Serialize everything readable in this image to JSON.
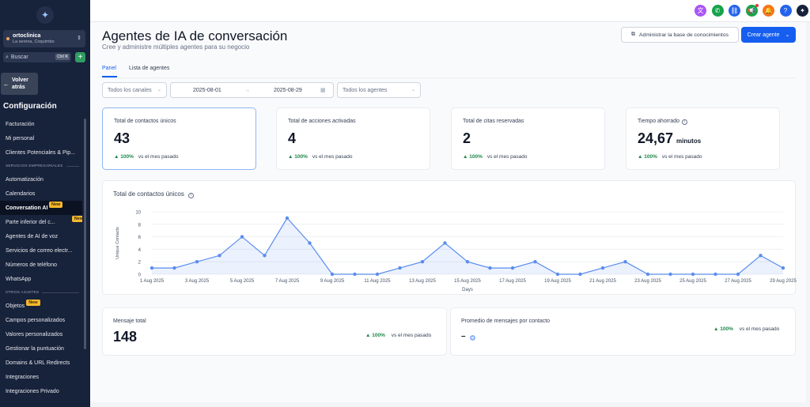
{
  "sidebar": {
    "account_name": "ortoclinica",
    "account_location": "La serena, Coquimbo",
    "search_placeholder": "Buscar",
    "search_shortcut": "Ctrl K",
    "back_label_1": "Volver",
    "back_label_2": "atrás",
    "config_title": "Configuración",
    "new_badge": "New",
    "items": [
      {
        "type": "item",
        "label": "Facturación"
      },
      {
        "type": "item",
        "label": "Mi personal"
      },
      {
        "type": "item",
        "label": "Clientes Potenciales & Pip..."
      },
      {
        "type": "section",
        "label": "SERVICIOS EMPRESARIALES"
      },
      {
        "type": "item",
        "label": "Automatización"
      },
      {
        "type": "item",
        "label": "Calendarios"
      },
      {
        "type": "item",
        "label": "Conversation AI",
        "active": true,
        "badge": true
      },
      {
        "type": "item",
        "label": "Parte inferior del c...",
        "badge": true
      },
      {
        "type": "item",
        "label": "Agentes de AI de voz"
      },
      {
        "type": "item",
        "label": "Servicios de correo electr..."
      },
      {
        "type": "item",
        "label": "Números de teléfono"
      },
      {
        "type": "item",
        "label": "WhatsApp"
      },
      {
        "type": "section",
        "label": "OTROS AJUSTES"
      },
      {
        "type": "item",
        "label": "Objetos",
        "badge": true
      },
      {
        "type": "item",
        "label": "Campos personalizados"
      },
      {
        "type": "item",
        "label": "Valores personalizados"
      },
      {
        "type": "item",
        "label": "Gestionar la puntuación"
      },
      {
        "type": "item",
        "label": "Domains & URL Redirects"
      },
      {
        "type": "item",
        "label": "Integraciones"
      },
      {
        "type": "item",
        "label": "Integraciones Privado"
      }
    ]
  },
  "topbar": {
    "icons": [
      {
        "name": "translate-icon",
        "glyph": "文",
        "color": "#a855f7"
      },
      {
        "name": "phone-icon",
        "glyph": "✆",
        "color": "#16a34a"
      },
      {
        "name": "link-icon",
        "glyph": "⛓",
        "color": "#2563eb"
      },
      {
        "name": "megaphone-icon",
        "glyph": "📢",
        "color": "#16a34a",
        "dot": true
      },
      {
        "name": "bell-icon",
        "glyph": "🔔",
        "color": "#f97316"
      },
      {
        "name": "help-icon",
        "glyph": "?",
        "color": "#2563eb"
      },
      {
        "name": "profile-logo-icon",
        "glyph": "✦",
        "color": "#17223b"
      }
    ]
  },
  "header": {
    "title": "Agentes de IA de conversación",
    "subtitle": "Cree y administre múltiples agentes para su negocio",
    "kb_button": "Administrar la base de conocimientos",
    "create_button": "Crear agente"
  },
  "tabs": [
    "Panel",
    "Lista de agentes"
  ],
  "filters": {
    "channels": "Todos los canales",
    "date_from": "2025-08-01",
    "date_to": "2025-08-29",
    "date_arrow": "→",
    "agents": "Todos los agentes"
  },
  "stats": [
    {
      "label": "Total de contactos únicos",
      "value": "43",
      "unit": "",
      "change": "100%",
      "change_text": "vs el mes pasado"
    },
    {
      "label": "Total de acciones activadas",
      "value": "4",
      "unit": "",
      "change": "100%",
      "change_text": "vs el mes pasado"
    },
    {
      "label": "Total de citas reservadas",
      "value": "2",
      "unit": "",
      "change": "100%",
      "change_text": "vs el mes pasado"
    },
    {
      "label": "Tiempo ahorrado",
      "value": "24,67",
      "unit": "minutos",
      "change": "100%",
      "change_text": "vs el mes pasado",
      "info": true
    }
  ],
  "chart_title": "Total de contactos únicos",
  "chart_data": {
    "type": "area",
    "title": "Total de contactos únicos",
    "xlabel": "Days",
    "ylabel": "Unique Contacts",
    "ylim": [
      0,
      10
    ],
    "yticks": [
      0,
      2,
      4,
      6,
      8,
      10
    ],
    "grid": true,
    "x": [
      "1 Aug 2025",
      "2 Aug 2025",
      "3 Aug 2025",
      "4 Aug 2025",
      "5 Aug 2025",
      "6 Aug 2025",
      "7 Aug 2025",
      "8 Aug 2025",
      "9 Aug 2025",
      "10 Aug 2025",
      "11 Aug 2025",
      "12 Aug 2025",
      "13 Aug 2025",
      "14 Aug 2025",
      "15 Aug 2025",
      "16 Aug 2025",
      "17 Aug 2025",
      "18 Aug 2025",
      "19 Aug 2025",
      "20 Aug 2025",
      "21 Aug 2025",
      "22 Aug 2025",
      "23 Aug 2025",
      "24 Aug 2025",
      "25 Aug 2025",
      "26 Aug 2025",
      "27 Aug 2025",
      "28 Aug 2025",
      "29 Aug 2025"
    ],
    "xtick_labels": [
      "1 Aug 2025",
      "3 Aug 2025",
      "5 Aug 2025",
      "7 Aug 2025",
      "9 Aug 2025",
      "11 Aug 2025",
      "13 Aug 2025",
      "15 Aug 2025",
      "17 Aug 2025",
      "19 Aug 2025",
      "21 Aug 2025",
      "23 Aug 2025",
      "25 Aug 2025",
      "27 Aug 2025",
      "29 Aug 2025"
    ],
    "series": [
      {
        "values": [
          1,
          1,
          2,
          3,
          6,
          3,
          9,
          5,
          0,
          0,
          0,
          1,
          2,
          5,
          2,
          1,
          1,
          2,
          0,
          0,
          1,
          2,
          0,
          0,
          0,
          0,
          0,
          3,
          1
        ]
      }
    ],
    "color": "#5b8def"
  },
  "bottom": {
    "messages_label": "Mensaje total",
    "messages_value": "148",
    "messages_change": "100%",
    "messages_change_text": "vs el mes pasado",
    "avg_label": "Promedio de mensajes por contacto",
    "avg_value": "–",
    "avg_change": "100%",
    "avg_change_text": "vs el mes pasado"
  }
}
